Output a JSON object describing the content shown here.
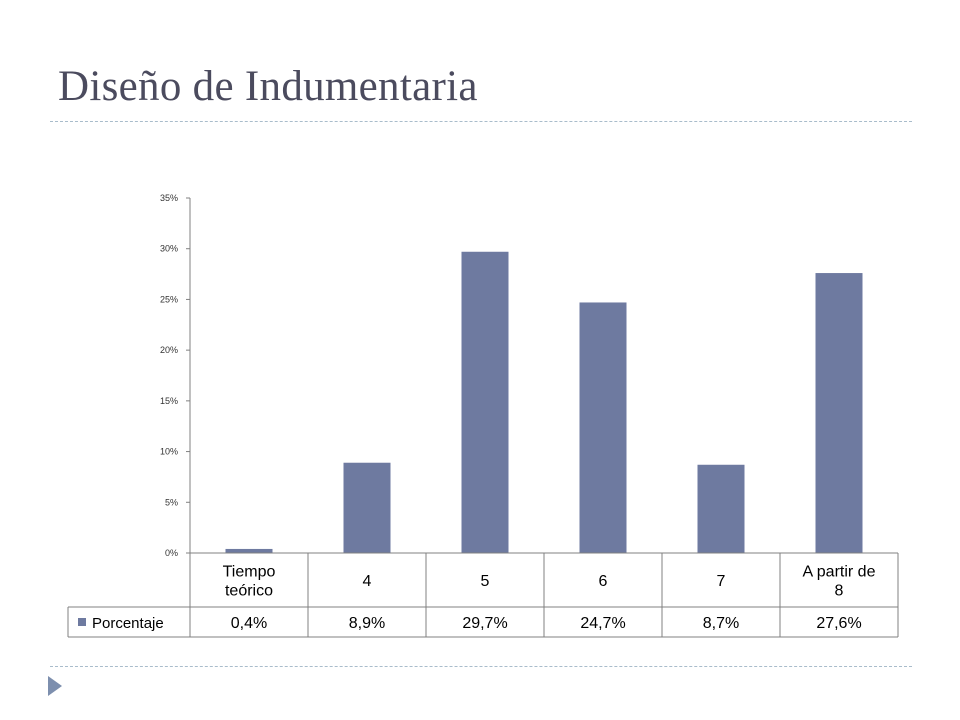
{
  "slide": {
    "title": "Diseño de Indumentaria",
    "accent_color": "#6e7aa0",
    "bullet_icon": "play-triangle-icon"
  },
  "chart_data": {
    "type": "bar",
    "title": "",
    "xlabel": "",
    "ylabel": "",
    "categories": [
      "Tiempo teórico",
      "4",
      "5",
      "6",
      "7",
      "A partir de 8"
    ],
    "category_lines": [
      [
        "Tiempo",
        "teórico"
      ],
      [
        "4"
      ],
      [
        "5"
      ],
      [
        "6"
      ],
      [
        "7"
      ],
      [
        "A partir de",
        "8"
      ]
    ],
    "series": [
      {
        "name": "Porcentaje",
        "values": [
          0.4,
          8.9,
          29.7,
          24.7,
          8.7,
          27.6
        ],
        "labels": [
          "0,4%",
          "8,9%",
          "29,7%",
          "24,7%",
          "8,7%",
          "27,6%"
        ],
        "color": "#6e7aa0"
      }
    ],
    "yticks": [
      "0%",
      "5%",
      "10%",
      "15%",
      "20%",
      "25%",
      "30%",
      "35%"
    ],
    "ylim": [
      0,
      35
    ],
    "grid": false,
    "data_table": true,
    "legend_placement": "data-table-left"
  }
}
